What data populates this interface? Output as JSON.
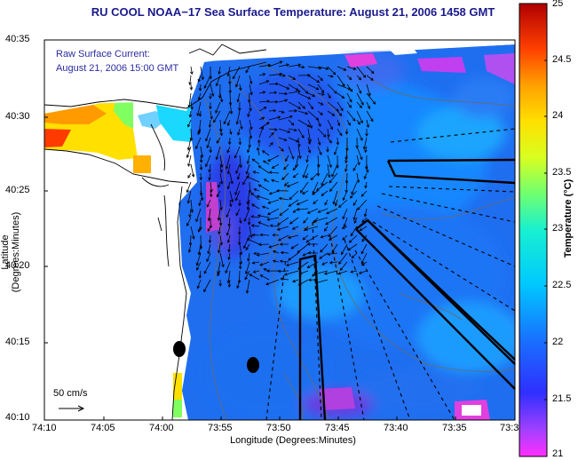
{
  "title": "RU COOL  NOAA−17  Sea Surface Temperature:  August 21, 2006 1458 GMT",
  "current_label": [
    "Raw Surface Current:",
    "August 21, 2006 15:00 GMT"
  ],
  "scale_label": "50 cm/s",
  "x_axis": {
    "label": "Longitude (Degrees:Minutes)",
    "ticks": [
      "74:10",
      "74:05",
      "74:00",
      "73:55",
      "73:50",
      "73:45",
      "73:40",
      "73:35",
      "73:3"
    ]
  },
  "y_axis": {
    "label": "Latitude (Degrees:Minutes)",
    "ticks": [
      "40:35",
      "40:30",
      "40:25",
      "40:20",
      "40:15",
      "40:10"
    ]
  },
  "colorbar": {
    "label": "Temperature (°C)",
    "ticks": [
      "25",
      "24.5",
      "24",
      "23.5",
      "23",
      "22.5",
      "22",
      "21.5",
      "21"
    ]
  }
}
